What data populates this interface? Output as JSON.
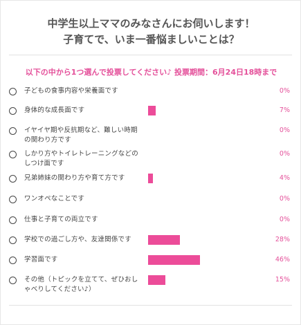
{
  "title": {
    "line1": "中学生以上ママのみなさんにお伺いします！",
    "line2": "子育てで、いま一番悩ましいことは？"
  },
  "instruction": "以下の中から1つ選んで投票してください♪ 投票期間：6月24日18時まで",
  "colors": {
    "accent": "#ec4c99",
    "text": "#444444"
  },
  "chart_data": {
    "type": "bar",
    "categories": [
      "子どもの食事内容や栄養面です",
      "身体的な成長面です",
      "イヤイヤ期や反抗期など、難しい時期の関わり方です",
      "しかり方やトイレトレーニングなどのしつけ面です",
      "兄弟姉妹の関わり方や育て方です",
      "ワンオペなことです",
      "仕事と子育ての両立です",
      "学校での過ごし方や、友達関係です",
      "学習面です",
      "その他（トピックを立てて、ぜひおしゃべりしてください♪）"
    ],
    "values": [
      0,
      7,
      0,
      0,
      4,
      0,
      0,
      28,
      46,
      15
    ],
    "labels": [
      "0%",
      "7%",
      "0%",
      "0%",
      "4%",
      "0%",
      "0%",
      "28%",
      "46%",
      "15%"
    ],
    "unit": "%"
  }
}
